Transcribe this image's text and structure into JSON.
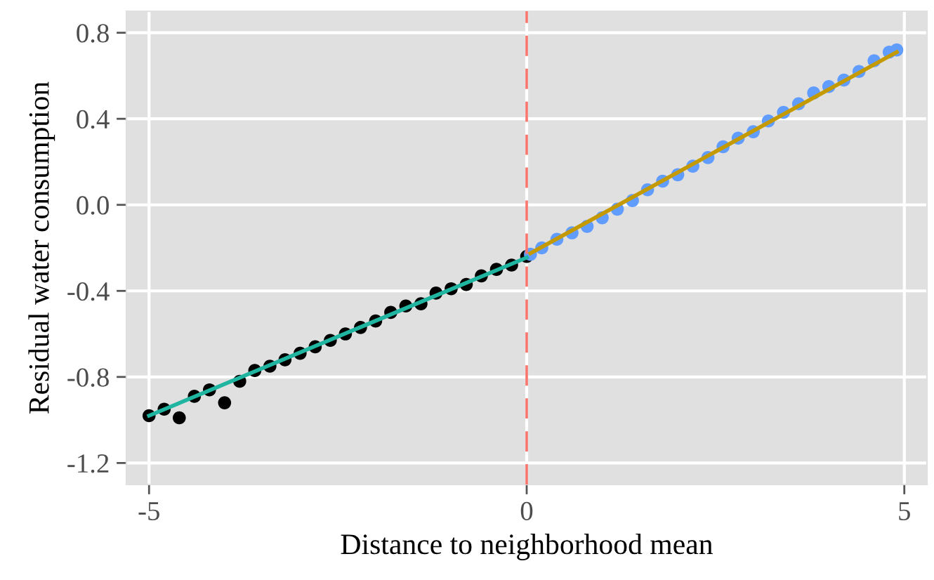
{
  "chart_data": {
    "type": "scatter",
    "xlabel": "Distance to neighborhood mean",
    "ylabel": "Residual water consumption",
    "xlim": [
      -5.3,
      5.3
    ],
    "xticks": [
      -5,
      0,
      5
    ],
    "ylim": [
      -1.3,
      0.9
    ],
    "yticks": [
      0.8,
      0.4,
      {
        "value": 0.0,
        "label": "0.0"
      },
      -0.4,
      -0.8,
      -1.2
    ],
    "grid": true,
    "ref_lines": [
      {
        "axis": "x",
        "value": 0,
        "color": "#f8766d",
        "line_style": "dashed"
      }
    ],
    "series": [
      {
        "marker": "circle",
        "color": "#000000",
        "x": [
          -5,
          -4.8,
          -4.6,
          -4.4,
          -4.2,
          -4.0,
          -3.8,
          -3.6,
          -3.4,
          -3.2,
          -3.0,
          -2.8,
          -2.6,
          -2.4,
          -2.2,
          -2.0,
          -1.8,
          -1.6,
          -1.4,
          -1.2,
          -1.0,
          -0.8,
          -0.6,
          -0.4,
          -0.2,
          0
        ],
        "values": [
          -0.98,
          -0.95,
          -0.99,
          -0.89,
          -0.86,
          -0.92,
          -0.82,
          -0.77,
          -0.75,
          -0.72,
          -0.69,
          -0.66,
          -0.63,
          -0.6,
          -0.57,
          -0.54,
          -0.5,
          -0.47,
          -0.46,
          -0.41,
          -0.39,
          -0.37,
          -0.33,
          -0.3,
          -0.28,
          -0.24
        ]
      },
      {
        "marker": "circle",
        "color": "#619cff",
        "x": [
          0.05,
          0.2,
          0.4,
          0.6,
          0.8,
          1.0,
          1.2,
          1.4,
          1.6,
          1.8,
          2.0,
          2.2,
          2.4,
          2.6,
          2.8,
          3.0,
          3.2,
          3.4,
          3.6,
          3.8,
          4.0,
          4.2,
          4.4,
          4.6,
          4.8,
          4.9
        ],
        "values": [
          -0.23,
          -0.2,
          -0.16,
          -0.13,
          -0.1,
          -0.06,
          -0.02,
          0.02,
          0.07,
          0.11,
          0.14,
          0.18,
          0.22,
          0.27,
          0.31,
          0.34,
          0.39,
          0.43,
          0.47,
          0.52,
          0.55,
          0.58,
          0.62,
          0.67,
          0.71,
          0.72
        ]
      },
      {
        "type": "line",
        "marker": "none",
        "color": "#1fb5a0",
        "x": [
          -5,
          0
        ],
        "values": [
          -0.98,
          -0.245
        ]
      },
      {
        "type": "line",
        "marker": "none",
        "color": "#c49a00",
        "x": [
          0.05,
          4.9
        ],
        "values": [
          -0.225,
          0.71
        ]
      }
    ]
  }
}
